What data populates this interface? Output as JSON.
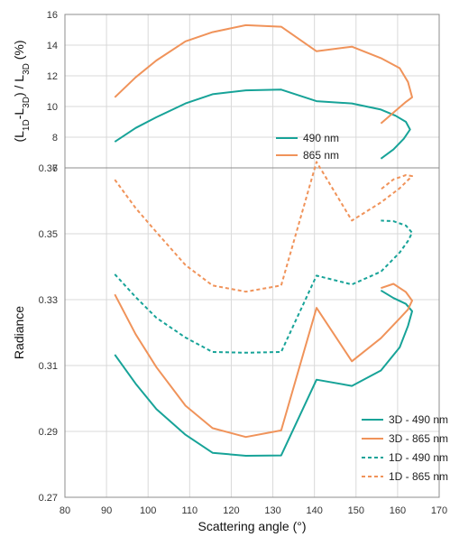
{
  "chart_data": [
    {
      "type": "line",
      "ylabel": "(L1D-L3D) / L3D (%)",
      "ylabel_parts": [
        "(L",
        "1D",
        "-L",
        "3D",
        ") / L",
        "3D",
        " (%)"
      ],
      "ylim": [
        6,
        16
      ],
      "yticks": [
        "6",
        "8",
        "10",
        "12",
        "14",
        "16"
      ],
      "xlim": [
        80,
        170
      ],
      "grid": true,
      "legend": "center-right",
      "series": [
        {
          "name": "490 nm",
          "color": "#17a398",
          "dash": "solid",
          "x": [
            92,
            97,
            102,
            109,
            115.5,
            123.5,
            132,
            140.5,
            149,
            156,
            159.5,
            162,
            163,
            161.5,
            159,
            156
          ],
          "y": [
            7.7,
            8.6,
            9.3,
            10.2,
            10.8,
            11.05,
            11.1,
            10.35,
            10.2,
            9.8,
            9.4,
            9.0,
            8.5,
            7.9,
            7.2,
            6.6
          ]
        },
        {
          "name": "865 nm",
          "color": "#f0935a",
          "dash": "solid",
          "x": [
            92,
            97,
            102,
            109,
            115.5,
            123.5,
            132,
            140.5,
            149,
            156,
            160.5,
            162.5,
            163.5,
            162,
            159,
            156
          ],
          "y": [
            10.6,
            11.9,
            13.0,
            14.25,
            14.85,
            15.3,
            15.2,
            13.6,
            13.9,
            13.15,
            12.5,
            11.6,
            10.6,
            10.3,
            9.6,
            8.9
          ]
        }
      ]
    },
    {
      "type": "line",
      "xlabel": "Scattering angle (°)",
      "ylabel": "Radiance",
      "xlim": [
        80,
        170
      ],
      "ylim": [
        0.27,
        0.37
      ],
      "xticks": [
        "80",
        "90",
        "100",
        "110",
        "120",
        "130",
        "140",
        "150",
        "160",
        "170"
      ],
      "yticks": [
        "0.27",
        "0.29",
        "0.31",
        "0.33",
        "0.35",
        "0.37"
      ],
      "grid": true,
      "legend": "bottom-right",
      "series": [
        {
          "name": "3D - 490 nm",
          "color": "#17a398",
          "dash": "solid",
          "x": [
            92,
            97,
            102,
            109,
            115.5,
            123.5,
            132,
            140.5,
            149,
            156,
            160.5,
            162.5,
            163.5,
            162,
            159,
            156
          ],
          "y": [
            0.3133,
            0.3045,
            0.2968,
            0.289,
            0.2835,
            0.2826,
            0.2827,
            0.3057,
            0.3038,
            0.3085,
            0.3155,
            0.322,
            0.3265,
            0.3287,
            0.3305,
            0.3328
          ]
        },
        {
          "name": "3D - 865 nm",
          "color": "#f0935a",
          "dash": "solid",
          "x": [
            92,
            97,
            102,
            109,
            115.5,
            123.5,
            132,
            140.5,
            149,
            156,
            160.5,
            162.5,
            163.5,
            162,
            159,
            156
          ],
          "y": [
            0.3316,
            0.3195,
            0.3095,
            0.2978,
            0.291,
            0.2883,
            0.2903,
            0.3275,
            0.3113,
            0.3183,
            0.3243,
            0.327,
            0.3297,
            0.3323,
            0.3348,
            0.3335
          ]
        },
        {
          "name": "1D - 490 nm",
          "color": "#17a398",
          "dash": "dashed",
          "x": [
            92,
            97,
            102,
            109,
            115.5,
            123.5,
            132,
            140.5,
            149,
            156,
            160.5,
            162.5,
            163.5,
            162,
            159,
            156
          ],
          "y": [
            0.3377,
            0.3308,
            0.3245,
            0.3185,
            0.3141,
            0.3139,
            0.3141,
            0.3373,
            0.3346,
            0.3385,
            0.3443,
            0.3478,
            0.3503,
            0.3525,
            0.3538,
            0.354
          ]
        },
        {
          "name": "1D - 865 nm",
          "color": "#f0935a",
          "dash": "dashed",
          "x": [
            92,
            97,
            102,
            109,
            115.5,
            123.5,
            132,
            140.5,
            149,
            156,
            160.5,
            162.5,
            163.5,
            162,
            159,
            156
          ],
          "y": [
            0.3664,
            0.3578,
            0.3505,
            0.3405,
            0.3343,
            0.3324,
            0.3343,
            0.3718,
            0.354,
            0.3595,
            0.3638,
            0.3663,
            0.3675,
            0.3678,
            0.3665,
            0.3635
          ]
        }
      ]
    }
  ]
}
